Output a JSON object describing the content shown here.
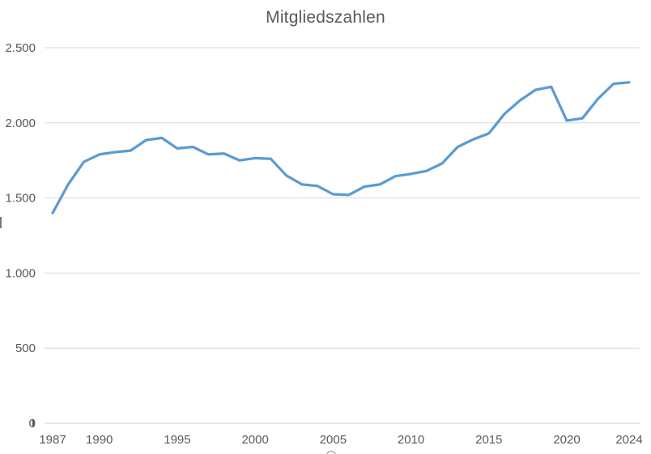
{
  "chart_data": {
    "type": "line",
    "title": "Mitgliedszahlen",
    "xlabel": "",
    "ylabel": "",
    "xlim": [
      1987,
      2024
    ],
    "ylim": [
      0,
      2500
    ],
    "grid": "horizontal",
    "legend": "none",
    "x": [
      1987,
      1988,
      1989,
      1990,
      1991,
      1992,
      1993,
      1994,
      1995,
      1996,
      1997,
      1998,
      1999,
      2000,
      2001,
      2002,
      2003,
      2004,
      2005,
      2006,
      2007,
      2008,
      2009,
      2010,
      2011,
      2012,
      2013,
      2014,
      2015,
      2016,
      2017,
      2018,
      2019,
      2020,
      2021,
      2022,
      2023,
      2024
    ],
    "series": [
      {
        "name": "Mitgliedszahlen",
        "color": "#5B9BD5",
        "values": [
          1400,
          1590,
          1740,
          1790,
          1805,
          1815,
          1885,
          1900,
          1830,
          1840,
          1790,
          1795,
          1750,
          1765,
          1760,
          1650,
          1590,
          1580,
          1525,
          1520,
          1575,
          1590,
          1645,
          1660,
          1680,
          1730,
          1840,
          1890,
          1930,
          2060,
          2150,
          2220,
          2240,
          2015,
          2030,
          2160,
          2260,
          2270
        ]
      }
    ],
    "x_tick_years": [
      1987,
      1990,
      1995,
      2000,
      2005,
      2010,
      2015,
      2020,
      2024
    ],
    "x_tick_labels": [
      "1987",
      "1990",
      "1995",
      "2000",
      "2005",
      "2010",
      "2015",
      "2020",
      "2024"
    ],
    "y_tick_values": [
      0,
      500,
      1000,
      1500,
      2000,
      2500
    ],
    "y_tick_labels": [
      "0",
      "500",
      "1.000",
      "1.500",
      "2.000",
      "2.500"
    ],
    "colors": {
      "line": "#5B9BD5",
      "gridline": "#D9D9D9",
      "axis_line": "#CCCCCC",
      "text": "#595959",
      "background": "#FFFFFF"
    }
  }
}
